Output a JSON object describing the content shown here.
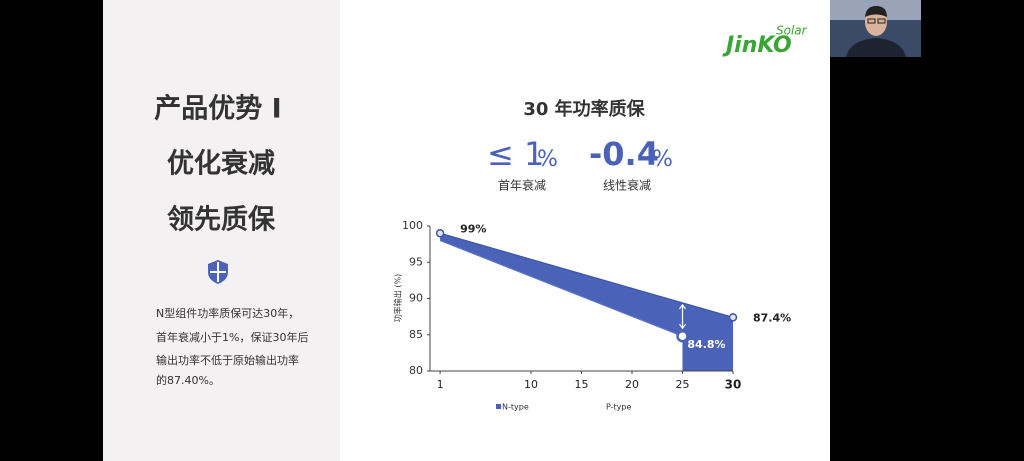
{
  "slide": {
    "left_title": [
      "产品优势 I",
      "优化衰减",
      "领先质保"
    ],
    "description": [
      "N型组件功率质保可达30年，",
      "首年衰减小于1%，保证30年后",
      "输出功率不低于原始输出功率",
      "的87.40%。"
    ],
    "heading": "30 年功率质保",
    "stats": [
      {
        "big": "≤ 1",
        "unit": "%",
        "caption": "首年衰减"
      },
      {
        "big": "-0.4",
        "unit": "%",
        "caption": "线性衰减"
      }
    ],
    "logo": {
      "brand": "JinKO",
      "sub": "Solar"
    }
  },
  "chart_data": {
    "type": "line",
    "y_label": "功率输出 (%)",
    "xlim": [
      0,
      30
    ],
    "xticks": [
      1,
      10,
      15,
      20,
      25,
      30
    ],
    "ylim": [
      80,
      100
    ],
    "yticks": [
      80,
      85,
      90,
      95,
      100
    ],
    "series": [
      {
        "name": "N-type",
        "color": "#4a63b8",
        "x": [
          1,
          30
        ],
        "values": [
          99,
          87.4
        ],
        "value_labels": [
          "99%",
          "87.4%"
        ]
      },
      {
        "name": "P-type",
        "color": "#ffffff",
        "x": [
          1,
          25
        ],
        "values": [
          98,
          84.8
        ],
        "value_labels": [
          null,
          "84.8%"
        ]
      }
    ]
  }
}
